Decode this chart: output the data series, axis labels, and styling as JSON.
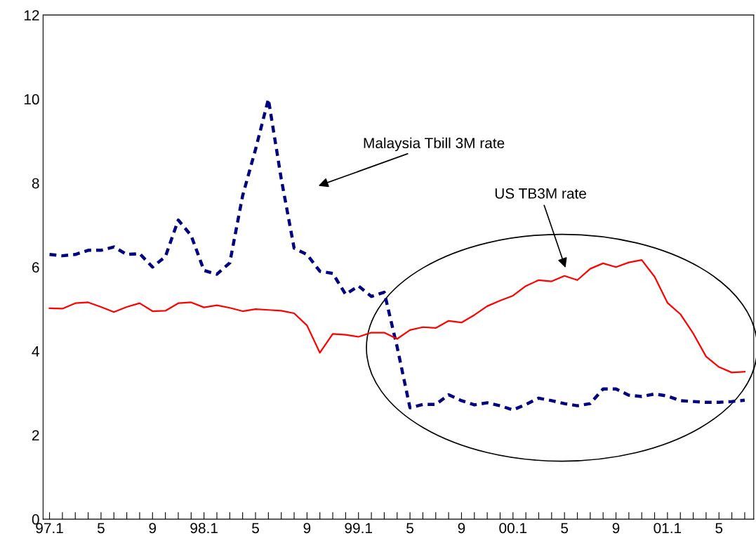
{
  "chart_data": {
    "type": "line",
    "categories": [
      "97.1",
      null,
      null,
      null,
      "5",
      null,
      null,
      null,
      "9",
      null,
      null,
      null,
      "98.1",
      null,
      null,
      null,
      "5",
      null,
      null,
      null,
      "9",
      null,
      null,
      null,
      "99.1",
      null,
      null,
      null,
      "5",
      null,
      null,
      null,
      "9",
      null,
      null,
      null,
      "00.1",
      null,
      null,
      null,
      "5",
      null,
      null,
      null,
      "9",
      null,
      null,
      null,
      "01.1",
      null,
      null,
      null,
      "5",
      null,
      null
    ],
    "series": [
      {
        "color": "#000080",
        "line_style": "dashed",
        "values": [
          6.3,
          6.27,
          6.3,
          6.4,
          6.4,
          6.48,
          6.3,
          6.32,
          6.0,
          6.25,
          7.12,
          6.75,
          5.92,
          5.83,
          6.1,
          7.7,
          8.8,
          10.0,
          8.1,
          6.45,
          6.3,
          5.9,
          5.85,
          5.35,
          5.55,
          5.3,
          5.4,
          4.1,
          2.65,
          2.73,
          2.73,
          2.96,
          2.82,
          2.72,
          2.77,
          2.7,
          2.6,
          2.73,
          2.88,
          2.82,
          2.75,
          2.7,
          2.75,
          3.1,
          3.1,
          2.95,
          2.92,
          2.98,
          2.93,
          2.82,
          2.8,
          2.78,
          2.78,
          2.8,
          2.83
        ]
      },
      {
        "color": "#ff0000",
        "line_style": "solid",
        "values": [
          5.02,
          5.01,
          5.14,
          5.16,
          5.05,
          4.93,
          5.05,
          5.14,
          4.95,
          4.96,
          5.14,
          5.16,
          5.04,
          5.09,
          5.03,
          4.95,
          5.0,
          4.98,
          4.96,
          4.9,
          4.61,
          3.96,
          4.41,
          4.39,
          4.34,
          4.44,
          4.44,
          4.29,
          4.5,
          4.57,
          4.55,
          4.72,
          4.68,
          4.86,
          5.07,
          5.2,
          5.32,
          5.55,
          5.69,
          5.66,
          5.79,
          5.69,
          5.96,
          6.09,
          6.0,
          6.11,
          6.17,
          5.77,
          5.15,
          4.88,
          4.42,
          3.87,
          3.62,
          3.49,
          3.51
        ]
      }
    ],
    "annotations": [
      "Malaysia Tbill 3M rate",
      "US TB3M rate"
    ],
    "ylim": [
      0,
      12
    ],
    "yticks": [
      0,
      2,
      4,
      6,
      8,
      10,
      12
    ],
    "grid": false,
    "legend": false,
    "marker": "none"
  }
}
